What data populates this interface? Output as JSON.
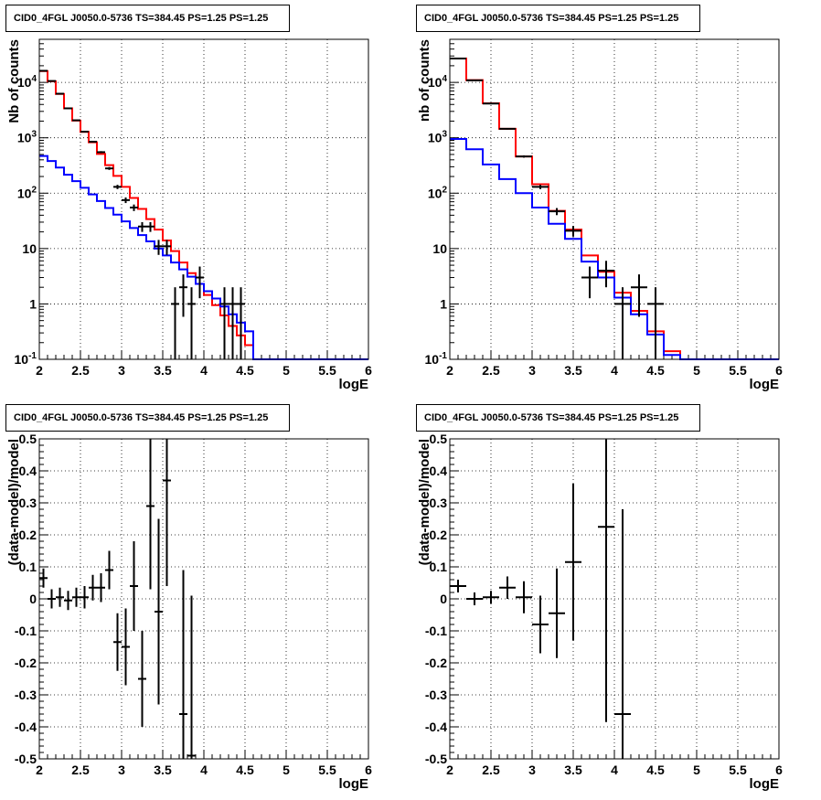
{
  "chart_data": [
    {
      "type": "step-histogram",
      "title": "CID0_4FGL J0050.0-5736 TS=384.45 PS=1.25 PS=1.25",
      "xlabel": "logE",
      "ylabel": "Nb of counts",
      "log_y": true,
      "xlim": [
        2,
        6
      ],
      "ylim": [
        0.1,
        60000
      ],
      "x_ticks": [
        "2",
        "2.5",
        "3",
        "3.5",
        "4",
        "4.5",
        "5",
        "5.5",
        "6"
      ],
      "y_ticks": [
        "10^{-1}",
        "1",
        "10",
        "10^{2}",
        "10^{3}",
        "10^{4}"
      ],
      "grid": true,
      "bin_edges": [
        2.0,
        2.1,
        2.2,
        2.3,
        2.4,
        2.5,
        2.6,
        2.7,
        2.8,
        2.9,
        3.0,
        3.1,
        3.2,
        3.3,
        3.4,
        3.5,
        3.6,
        3.7,
        3.8,
        3.9,
        4.0,
        4.1,
        4.2,
        4.3,
        4.4,
        4.5,
        4.6,
        4.7,
        4.8,
        4.9,
        5.0,
        5.1,
        5.2,
        5.3,
        5.4,
        5.5,
        5.6,
        5.7,
        5.8,
        5.9,
        6.0
      ],
      "series": [
        {
          "color": "#ff0000",
          "values": [
            16000,
            10500,
            6200,
            3400,
            2050,
            1280,
            830,
            510,
            320,
            205,
            130,
            82,
            52,
            34,
            22,
            14,
            9.0,
            5.6,
            3.6,
            2.3,
            1.45,
            0.95,
            0.62,
            0.4,
            0.27,
            0.18,
            0.1,
            0.1,
            0.1,
            0.1,
            0.1,
            0.1,
            0.1,
            0.1,
            0.1,
            0.1,
            0.1,
            0.1,
            0.1,
            0.1
          ]
        },
        {
          "color": "#0000ff",
          "values": [
            470,
            380,
            290,
            215,
            165,
            125,
            95,
            72,
            54,
            41,
            31,
            23.5,
            17.5,
            13.5,
            10.0,
            7.5,
            5.6,
            4.2,
            3.1,
            2.3,
            1.7,
            1.25,
            0.9,
            0.65,
            0.46,
            0.32,
            0.1,
            0.1,
            0.1,
            0.1,
            0.1,
            0.1,
            0.1,
            0.1,
            0.1,
            0.1,
            0.1,
            0.1,
            0.1,
            0.1
          ]
        }
      ],
      "data_points": [
        {
          "x": 2.05,
          "y": 16200,
          "xerr": 0.05
        },
        {
          "x": 2.15,
          "y": 10600,
          "xerr": 0.05
        },
        {
          "x": 2.25,
          "y": 6250,
          "xerr": 0.05
        },
        {
          "x": 2.35,
          "y": 3400,
          "xerr": 0.05
        },
        {
          "x": 2.45,
          "y": 2070,
          "xerr": 0.05
        },
        {
          "x": 2.55,
          "y": 1290,
          "xerr": 0.05
        },
        {
          "x": 2.65,
          "y": 850,
          "xerr": 0.05
        },
        {
          "x": 2.75,
          "y": 550,
          "xerr": 0.05
        },
        {
          "x": 2.85,
          "y": 280,
          "xerr": 0.05
        },
        {
          "x": 2.95,
          "y": 130,
          "xerr": 0.05
        },
        {
          "x": 3.05,
          "y": 75,
          "xerr": 0.05
        },
        {
          "x": 3.15,
          "y": 55,
          "xerr": 0.05
        },
        {
          "x": 3.25,
          "y": 25,
          "xerr": 0.05
        },
        {
          "x": 3.35,
          "y": 25,
          "xerr": 0.05
        },
        {
          "x": 3.45,
          "y": 11,
          "xerr": 0.05
        },
        {
          "x": 3.55,
          "y": 11,
          "xerr": 0.05
        },
        {
          "x": 3.65,
          "y": 1,
          "xerr": 0.05
        },
        {
          "x": 3.75,
          "y": 2,
          "xerr": 0.05
        },
        {
          "x": 3.85,
          "y": 1,
          "xerr": 0.05
        },
        {
          "x": 3.95,
          "y": 3,
          "xerr": 0.05
        },
        {
          "x": 4.25,
          "y": 1,
          "xerr": 0.05
        },
        {
          "x": 4.35,
          "y": 1,
          "xerr": 0.05
        },
        {
          "x": 4.45,
          "y": 1,
          "xerr": 0.05
        }
      ]
    },
    {
      "type": "step-histogram",
      "title": "CID0_4FGL J0050.0-5736 TS=384.45 PS=1.25 PS=1.25",
      "xlabel": "logE",
      "ylabel": "nb of counts",
      "log_y": true,
      "xlim": [
        2,
        6
      ],
      "ylim": [
        0.1,
        60000
      ],
      "x_ticks": [
        "2",
        "2.5",
        "3",
        "3.5",
        "4",
        "4.5",
        "5",
        "5.5",
        "6"
      ],
      "y_ticks": [
        "10^{-1}",
        "1",
        "10",
        "10^{2}",
        "10^{3}",
        "10^{4}"
      ],
      "grid": true,
      "bin_edges": [
        2.0,
        2.2,
        2.4,
        2.6,
        2.8,
        3.0,
        3.2,
        3.4,
        3.6,
        3.8,
        4.0,
        4.2,
        4.4,
        4.6,
        4.8,
        5.0,
        5.2,
        5.4,
        5.6,
        5.8,
        6.0
      ],
      "series": [
        {
          "color": "#ff0000",
          "values": [
            27000,
            11000,
            4200,
            1450,
            460,
            145,
            48,
            22,
            7.5,
            3.8,
            1.6,
            0.75,
            0.32,
            0.14,
            0.1,
            0.1,
            0.1,
            0.1,
            0.1,
            0.1
          ]
        },
        {
          "color": "#0000ff",
          "values": [
            950,
            620,
            330,
            180,
            100,
            55,
            28,
            15,
            5.8,
            3.0,
            1.3,
            0.65,
            0.28,
            0.12,
            0.1,
            0.1,
            0.1,
            0.1,
            0.1,
            0.1
          ]
        }
      ],
      "data_points": [
        {
          "x": 2.1,
          "y": 27000,
          "xerr": 0.1
        },
        {
          "x": 2.3,
          "y": 10900,
          "xerr": 0.1
        },
        {
          "x": 2.5,
          "y": 4150,
          "xerr": 0.1
        },
        {
          "x": 2.7,
          "y": 1450,
          "xerr": 0.1
        },
        {
          "x": 2.9,
          "y": 460,
          "xerr": 0.1
        },
        {
          "x": 3.1,
          "y": 130,
          "xerr": 0.1
        },
        {
          "x": 3.3,
          "y": 47,
          "xerr": 0.1
        },
        {
          "x": 3.5,
          "y": 21,
          "xerr": 0.1
        },
        {
          "x": 3.7,
          "y": 3,
          "xerr": 0.1
        },
        {
          "x": 3.9,
          "y": 4,
          "xerr": 0.1
        },
        {
          "x": 4.1,
          "y": 1,
          "xerr": 0.1
        },
        {
          "x": 4.3,
          "y": 2,
          "xerr": 0.1
        },
        {
          "x": 4.5,
          "y": 1,
          "xerr": 0.1
        }
      ]
    },
    {
      "type": "scatter",
      "title": "CID0_4FGL J0050.0-5736 TS=384.45 PS=1.25 PS=1.25",
      "xlabel": "logE",
      "ylabel": "(data-model)/model",
      "log_y": false,
      "xlim": [
        2,
        6
      ],
      "ylim": [
        -0.5,
        0.5
      ],
      "x_ticks": [
        "2",
        "2.5",
        "3",
        "3.5",
        "4",
        "4.5",
        "5",
        "5.5",
        "6"
      ],
      "y_ticks": [
        "-0.5",
        "-0.4",
        "-0.3",
        "-0.2",
        "-0.1",
        "0",
        "0.1",
        "0.2",
        "0.3",
        "0.4",
        "0.5"
      ],
      "grid": true,
      "data_points": [
        {
          "x": 2.05,
          "y": 0.065,
          "xerr": 0.05,
          "yerr": 0.03
        },
        {
          "x": 2.15,
          "y": 0.0,
          "xerr": 0.05,
          "yerr": 0.03
        },
        {
          "x": 2.25,
          "y": 0.005,
          "xerr": 0.05,
          "yerr": 0.03
        },
        {
          "x": 2.35,
          "y": -0.005,
          "xerr": 0.05,
          "yerr": 0.03
        },
        {
          "x": 2.45,
          "y": 0.005,
          "xerr": 0.05,
          "yerr": 0.03
        },
        {
          "x": 2.55,
          "y": 0.005,
          "xerr": 0.05,
          "yerr": 0.035
        },
        {
          "x": 2.65,
          "y": 0.035,
          "xerr": 0.05,
          "yerr": 0.04
        },
        {
          "x": 2.75,
          "y": 0.035,
          "xerr": 0.05,
          "yerr": 0.045
        },
        {
          "x": 2.85,
          "y": 0.09,
          "xerr": 0.05,
          "yerr": 0.06
        },
        {
          "x": 2.95,
          "y": -0.135,
          "xerr": 0.05,
          "yerr": 0.09
        },
        {
          "x": 3.05,
          "y": -0.15,
          "xerr": 0.05,
          "yerr": 0.12
        },
        {
          "x": 3.15,
          "y": 0.04,
          "xerr": 0.05,
          "yerr": 0.14
        },
        {
          "x": 3.25,
          "y": -0.25,
          "xerr": 0.05,
          "yerr": 0.15
        },
        {
          "x": 3.35,
          "y": 0.29,
          "xerr": 0.05,
          "yerr": 0.26
        },
        {
          "x": 3.45,
          "y": -0.04,
          "xerr": 0.05,
          "yerr": 0.29
        },
        {
          "x": 3.55,
          "y": 0.37,
          "xerr": 0.05,
          "yerr": 0.33
        },
        {
          "x": 3.75,
          "y": -0.36,
          "xerr": 0.05,
          "yerr": 0.45
        },
        {
          "x": 3.85,
          "y": -0.49,
          "xerr": 0.05,
          "yerr": 0.5
        }
      ]
    },
    {
      "type": "scatter",
      "title": "CID0_4FGL J0050.0-5736 TS=384.45 PS=1.25 PS=1.25",
      "xlabel": "logE",
      "ylabel": "(data-model)/model",
      "log_y": false,
      "xlim": [
        2,
        6
      ],
      "ylim": [
        -0.5,
        0.5
      ],
      "x_ticks": [
        "2",
        "2.5",
        "3",
        "3.5",
        "4",
        "4.5",
        "5",
        "5.5",
        "6"
      ],
      "y_ticks": [
        "-0.5",
        "-0.4",
        "-0.3",
        "-0.2",
        "-0.1",
        "0",
        "0.1",
        "0.2",
        "0.3",
        "0.4",
        "0.5"
      ],
      "grid": true,
      "data_points": [
        {
          "x": 2.1,
          "y": 0.04,
          "xerr": 0.1,
          "yerr": 0.02
        },
        {
          "x": 2.3,
          "y": 0.0,
          "xerr": 0.1,
          "yerr": 0.02
        },
        {
          "x": 2.5,
          "y": 0.005,
          "xerr": 0.1,
          "yerr": 0.02
        },
        {
          "x": 2.7,
          "y": 0.035,
          "xerr": 0.1,
          "yerr": 0.035
        },
        {
          "x": 2.9,
          "y": 0.005,
          "xerr": 0.1,
          "yerr": 0.05
        },
        {
          "x": 3.1,
          "y": -0.08,
          "xerr": 0.1,
          "yerr": 0.09
        },
        {
          "x": 3.3,
          "y": -0.045,
          "xerr": 0.1,
          "yerr": 0.14
        },
        {
          "x": 3.5,
          "y": 0.115,
          "xerr": 0.1,
          "yerr": 0.245
        },
        {
          "x": 3.9,
          "y": 0.225,
          "xerr": 0.1,
          "yerr": 0.61
        },
        {
          "x": 4.1,
          "y": -0.36,
          "xerr": 0.1,
          "yerr": 0.64
        }
      ]
    }
  ]
}
